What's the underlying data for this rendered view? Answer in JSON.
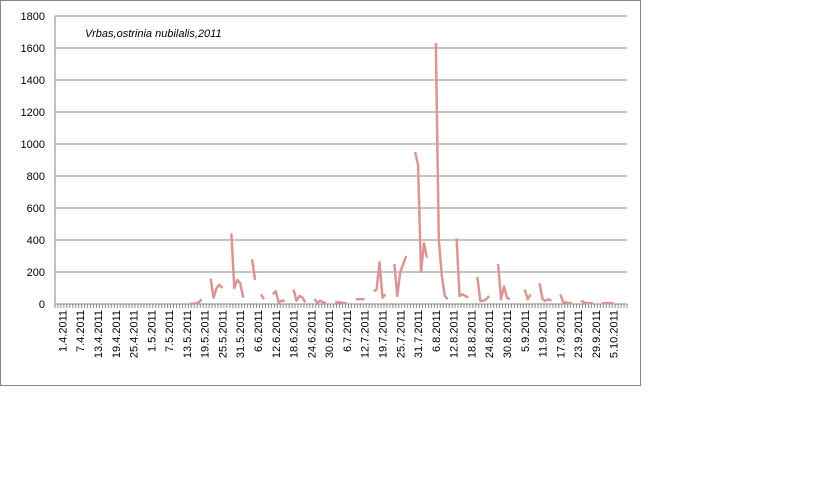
{
  "chart_data": {
    "type": "line",
    "title": "Vrbas,ostrinia nubilalis,2011",
    "categories": [
      null,
      null,
      "1.4.2011",
      null,
      null,
      null,
      null,
      null,
      "7.4.2011",
      null,
      null,
      null,
      null,
      null,
      "13.4.2011",
      null,
      null,
      null,
      null,
      null,
      "19.4.2011",
      null,
      null,
      null,
      null,
      null,
      "25.4.2011",
      null,
      null,
      null,
      null,
      null,
      "1.5.2011",
      null,
      null,
      null,
      null,
      null,
      "7.5.2011",
      null,
      null,
      null,
      null,
      null,
      "13.5.2011",
      null,
      null,
      null,
      null,
      null,
      "19.5.2011",
      null,
      null,
      null,
      null,
      null,
      "25.5.2011",
      null,
      null,
      null,
      null,
      null,
      "31.5.2011",
      null,
      null,
      null,
      null,
      null,
      "6.6.2011",
      null,
      null,
      null,
      null,
      null,
      "12.6.2011",
      null,
      null,
      null,
      null,
      null,
      "18.6.2011",
      null,
      null,
      null,
      null,
      null,
      "24.6.2011",
      null,
      null,
      null,
      null,
      null,
      "30.6.2011",
      null,
      null,
      null,
      null,
      null,
      "6.7.2011",
      null,
      null,
      null,
      null,
      null,
      "12.7.2011",
      null,
      null,
      null,
      null,
      null,
      "19.7.2011",
      null,
      null,
      null,
      null,
      null,
      "25.7.2011",
      null,
      null,
      null,
      null,
      null,
      "31.7.2011",
      null,
      null,
      null,
      null,
      null,
      "6.8.2011",
      null,
      null,
      null,
      null,
      null,
      "12.8.2011",
      null,
      null,
      null,
      null,
      null,
      "18.8.2011",
      null,
      null,
      null,
      null,
      null,
      "24.8.2011",
      null,
      null,
      null,
      null,
      null,
      "30.8.2011",
      null,
      null,
      null,
      null,
      null,
      "5.9.2011",
      null,
      null,
      null,
      null,
      null,
      "11.9.2011",
      null,
      null,
      null,
      null,
      null,
      "17.9.2011",
      null,
      null,
      null,
      null,
      null,
      "23.9.2011",
      null,
      null,
      null,
      null,
      null,
      "29.9.2011",
      null,
      null,
      null,
      null,
      null,
      "5.10.2011",
      null,
      null,
      null,
      null
    ],
    "series": [
      {
        "color": "#d99694",
        "values": [
          null,
          null,
          null,
          null,
          null,
          null,
          null,
          null,
          null,
          null,
          null,
          null,
          null,
          null,
          null,
          null,
          null,
          null,
          null,
          null,
          null,
          null,
          null,
          null,
          null,
          null,
          null,
          null,
          null,
          null,
          null,
          null,
          null,
          null,
          null,
          null,
          null,
          null,
          null,
          null,
          null,
          null,
          null,
          null,
          null,
          0,
          2,
          5,
          10,
          30,
          null,
          null,
          160,
          40,
          100,
          120,
          100,
          null,
          null,
          440,
          100,
          150,
          130,
          40,
          null,
          null,
          280,
          150,
          null,
          60,
          30,
          null,
          null,
          60,
          80,
          10,
          20,
          20,
          null,
          null,
          90,
          20,
          50,
          40,
          10,
          null,
          null,
          30,
          10,
          20,
          10,
          5,
          null,
          null,
          10,
          10,
          10,
          5,
          5,
          null,
          null,
          30,
          30,
          30,
          30,
          null,
          null,
          80,
          90,
          260,
          40,
          60,
          null,
          null,
          250,
          50,
          200,
          250,
          300,
          null,
          null,
          950,
          870,
          200,
          380,
          290,
          null,
          null,
          1630,
          400,
          180,
          50,
          30,
          null,
          null,
          410,
          50,
          60,
          50,
          40,
          null,
          null,
          170,
          20,
          20,
          30,
          50,
          null,
          null,
          250,
          30,
          110,
          40,
          30,
          null,
          null,
          null,
          null,
          90,
          30,
          60,
          null,
          null,
          130,
          30,
          20,
          30,
          20,
          null,
          null,
          60,
          10,
          10,
          5,
          5,
          null,
          null,
          20,
          10,
          5,
          5,
          5,
          null,
          null,
          5,
          5,
          5,
          5,
          5,
          null,
          null,
          null,
          null
        ]
      }
    ],
    "ylim": [
      0,
      1800
    ],
    "yticks": [
      0,
      200,
      400,
      600,
      800,
      1000,
      1200,
      1400,
      1600,
      1800
    ],
    "grid": true
  }
}
